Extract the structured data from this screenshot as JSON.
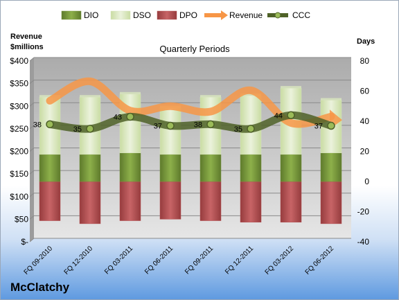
{
  "company": "McClatchy",
  "chart_data": {
    "type": "bar",
    "title": "Quarterly Periods",
    "left_axis_title": [
      "Revenue",
      "$millions"
    ],
    "right_axis_title": "Days",
    "categories": [
      "FQ 09-2010",
      "FQ 12-2010",
      "FQ 03-2011",
      "FQ 06-2011",
      "FQ 09-2011",
      "FQ 12-2011",
      "FQ 03-2012",
      "FQ 06-2012"
    ],
    "left_ticks": [
      "$400",
      "$350",
      "$300",
      "$250",
      "$200",
      "$150",
      "$100",
      "$50",
      "$-"
    ],
    "left_ylim": [
      0,
      400
    ],
    "right_ticks": [
      "80",
      "60",
      "40",
      "20",
      "0",
      "-20",
      "-40"
    ],
    "right_ylim": [
      -40,
      80
    ],
    "grid": true,
    "legend_position": "top",
    "series": [
      {
        "name": "DIO",
        "kind": "bar",
        "axis": "right",
        "color": "#77933c",
        "values": [
          18,
          18,
          19,
          18,
          18,
          18,
          18,
          19
        ]
      },
      {
        "name": "DSO",
        "kind": "bar",
        "axis": "right",
        "color": "#d7e4bd",
        "values": [
          38,
          38,
          39,
          31,
          38,
          39,
          44,
          35
        ]
      },
      {
        "name": "DPO",
        "kind": "bar",
        "axis": "right",
        "color": "#b65254",
        "values": [
          -26,
          -28,
          -26,
          -25,
          -26,
          -27,
          -27,
          -28
        ]
      },
      {
        "name": "Revenue",
        "kind": "line",
        "axis": "left",
        "color": "#f79646",
        "values": [
          312,
          355,
          290,
          300,
          288,
          335,
          263,
          277
        ]
      },
      {
        "name": "CCC",
        "kind": "line",
        "axis": "right",
        "color": "#4f6228",
        "values": [
          38,
          35,
          43,
          37,
          38,
          35,
          44,
          37
        ]
      }
    ],
    "ccc_labels": [
      "38",
      "35",
      "43",
      "37",
      "38",
      "35",
      "44",
      "37"
    ]
  }
}
